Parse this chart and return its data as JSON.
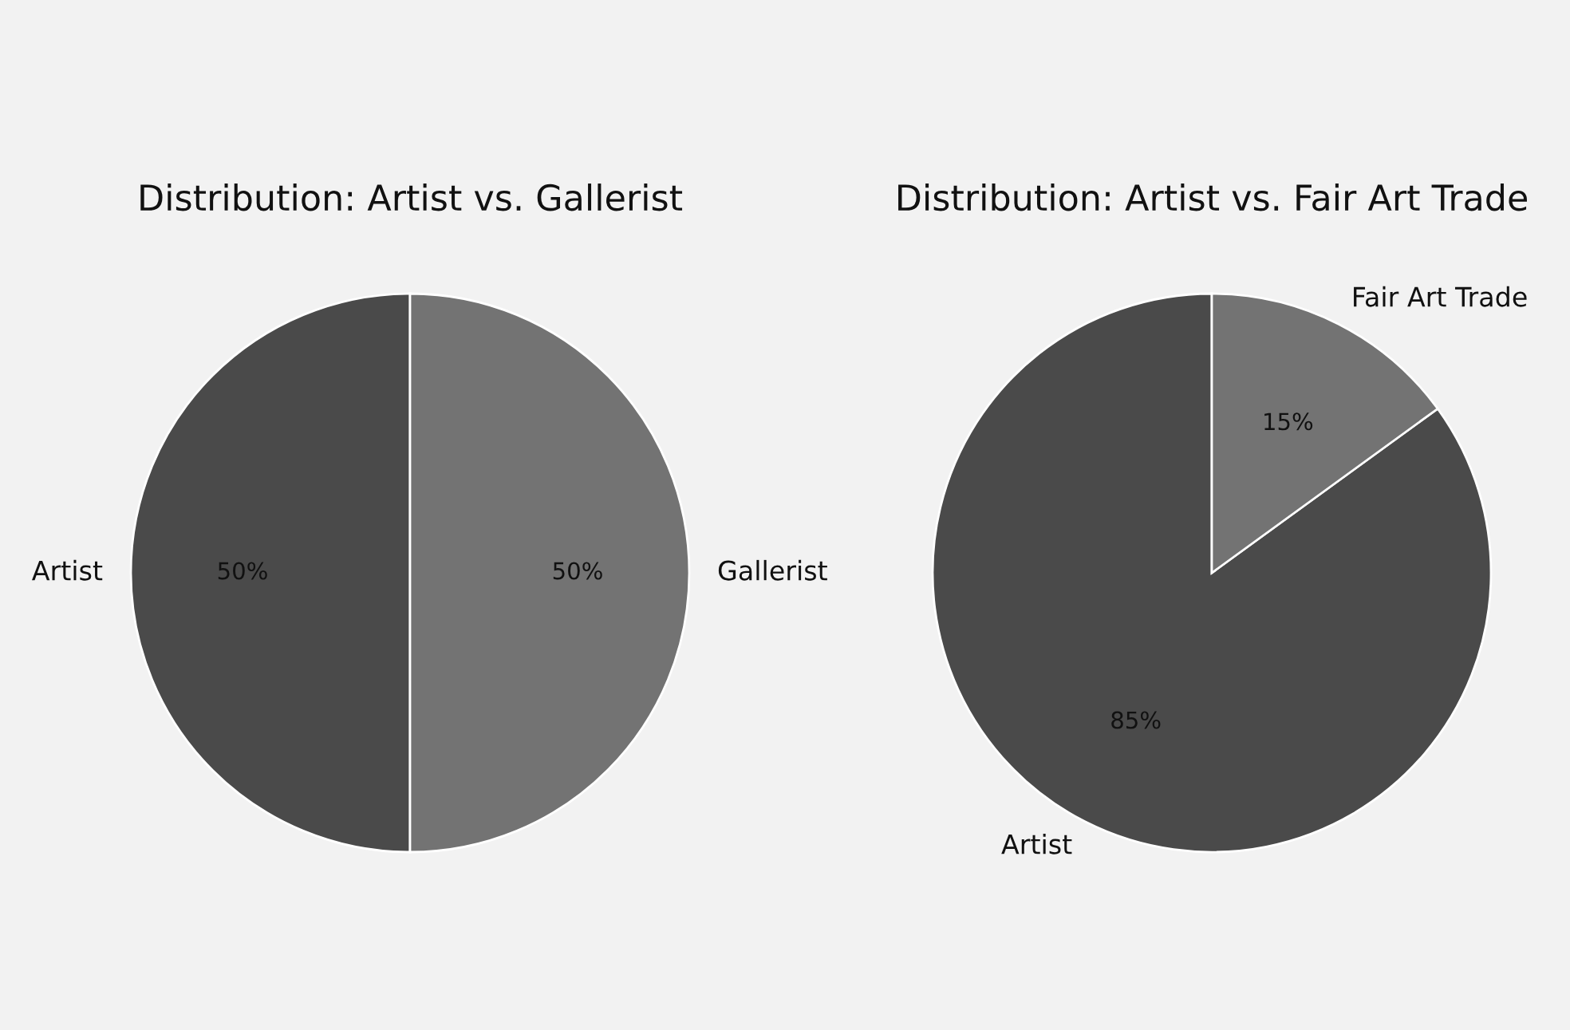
{
  "chart_data": [
    {
      "type": "pie",
      "title": "Distribution: Artist vs. Gallerist",
      "categories": [
        "Artist",
        "Gallerist"
      ],
      "values": [
        50,
        50
      ],
      "colors": [
        "#4a4a4a",
        "#737373"
      ],
      "value_labels": [
        "50%",
        "50%"
      ]
    },
    {
      "type": "pie",
      "title": "Distribution: Artist vs. Fair Art Trade",
      "categories": [
        "Artist",
        "Fair Art Trade"
      ],
      "values": [
        85,
        15
      ],
      "colors": [
        "#4a4a4a",
        "#737373"
      ],
      "value_labels": [
        "85%",
        "15%"
      ]
    }
  ]
}
